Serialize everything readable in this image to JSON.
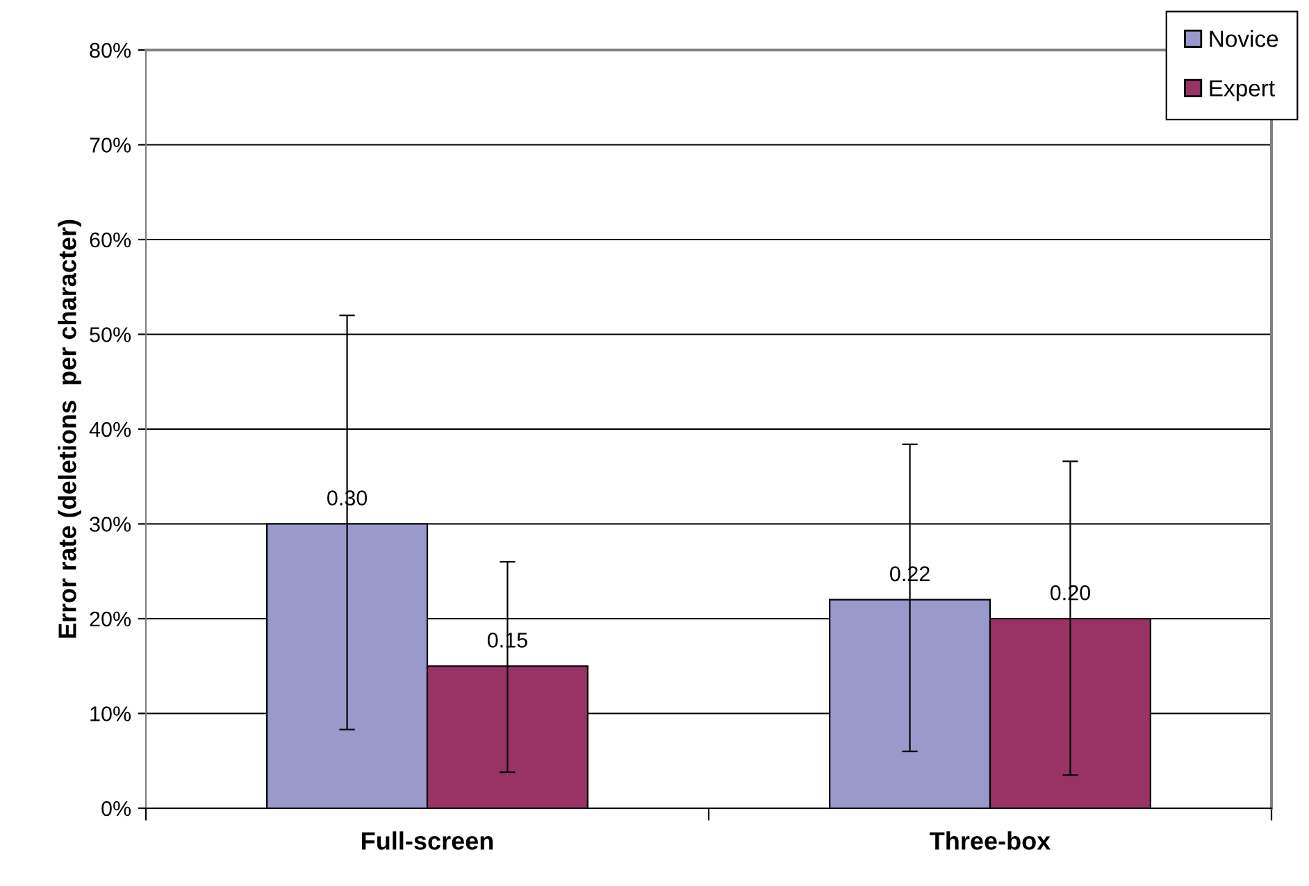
{
  "chart_data": {
    "type": "bar",
    "ylabel": "Error rate (deletions  per character)",
    "categories": [
      "Full-screen",
      "Three-box"
    ],
    "series": [
      {
        "name": "Novice",
        "color": "#9999cc",
        "values": [
          0.3,
          0.22
        ],
        "errors": [
          [
            0.083,
            0.52
          ],
          [
            0.06,
            0.384
          ]
        ],
        "value_labels": [
          "0.30",
          "0.22"
        ]
      },
      {
        "name": "Expert",
        "color": "#993366",
        "values": [
          0.15,
          0.2
        ],
        "errors": [
          [
            0.038,
            0.26
          ],
          [
            0.035,
            0.366
          ]
        ],
        "value_labels": [
          "0.15",
          "0.20"
        ]
      }
    ],
    "ylim": [
      0,
      0.8
    ],
    "yticks": [
      {
        "value": 0,
        "label": "0%"
      },
      {
        "value": 0.1,
        "label": "10%"
      },
      {
        "value": 0.2,
        "label": "20%"
      },
      {
        "value": 0.3,
        "label": "30%"
      },
      {
        "value": 0.4,
        "label": "40%"
      },
      {
        "value": 0.5,
        "label": "50%"
      },
      {
        "value": 0.6,
        "label": "60%"
      },
      {
        "value": 0.7,
        "label": "70%"
      },
      {
        "value": 0.8,
        "label": "80%"
      }
    ],
    "grid": "y",
    "legend": "top right"
  }
}
